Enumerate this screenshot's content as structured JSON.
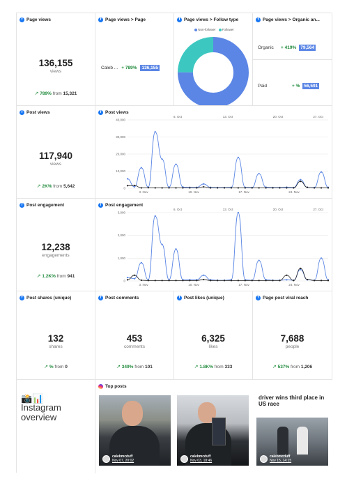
{
  "page_views": {
    "title": "Page views",
    "value": "136,155",
    "unit": "views",
    "change_pct": "789%",
    "change_from_label": "from",
    "change_from": "15,321"
  },
  "page_views_page": {
    "title": "Page views > Page",
    "label": "Caleb ...",
    "pct": "+ 789%",
    "value": "136,155"
  },
  "page_views_follow": {
    "title": "Page views > Follow type",
    "legend": [
      "Non-follower",
      "Follower"
    ],
    "chart_data": {
      "type": "pie",
      "labels": [
        "Non-follower",
        "Follower"
      ],
      "values": [
        75,
        25
      ],
      "colors": [
        "#5b86e5",
        "#3cc8c0"
      ]
    }
  },
  "page_views_organic": {
    "title": "Page views > Organic an...",
    "rows": [
      {
        "label": "Organic",
        "pct": "+ 419%",
        "value": "79,564"
      },
      {
        "label": "Paid",
        "pct": "+ %",
        "value": "56,591"
      }
    ]
  },
  "post_views": {
    "title": "Post views",
    "value": "117,940",
    "unit": "views",
    "change_pct": "2K%",
    "change_from_label": "from",
    "change_from": "5,642"
  },
  "post_views_chart": {
    "title": "Post views",
    "chart_data": {
      "type": "line",
      "top_ticks": [
        "6. Oct",
        "13. Oct",
        "20. Oct",
        "27. Oct"
      ],
      "bottom_ticks": [
        "3. Nov",
        "10. Nov",
        "17. Nov",
        "24. Nov"
      ],
      "y_ticks": [
        "40,000",
        "30,000",
        "20,000",
        "10,000",
        "0"
      ],
      "ylim": [
        0,
        40000
      ],
      "series": [
        {
          "values": [
            5500,
            800,
            12000,
            600,
            33000,
            17000,
            600,
            14000,
            700,
            500,
            500,
            2500,
            500,
            400,
            400,
            500,
            18000,
            500,
            400,
            8500,
            600,
            400,
            400,
            600,
            400,
            5000,
            500,
            400,
            9500,
            500
          ],
          "color": "#5b86e5"
        },
        {
          "values": [
            1500,
            1600,
            200,
            300,
            200,
            200,
            200,
            200,
            200,
            200,
            200,
            800,
            200,
            200,
            200,
            200,
            200,
            200,
            200,
            200,
            200,
            200,
            200,
            200,
            200,
            4000,
            500,
            200,
            200,
            200
          ],
          "color": "#222222"
        }
      ]
    }
  },
  "post_engagement": {
    "title": "Post engagement",
    "value": "12,238",
    "unit": "engagements",
    "change_pct": "1.2K%",
    "change_from_label": "from",
    "change_from": "941"
  },
  "post_engagement_chart": {
    "title": "Post engagement",
    "chart_data": {
      "type": "line",
      "top_ticks": [
        "6. Oct",
        "13. Oct",
        "20. Oct",
        "27. Oct"
      ],
      "bottom_ticks": [
        "3. Nov",
        "10. Nov",
        "17. Nov",
        "24. Nov"
      ],
      "y_ticks": [
        "3,000",
        "2,000",
        "1,000",
        "0"
      ],
      "ylim": [
        0,
        3000
      ],
      "series": [
        {
          "values": [
            150,
            100,
            800,
            50,
            2850,
            1600,
            50,
            1400,
            50,
            50,
            50,
            250,
            50,
            30,
            30,
            50,
            3000,
            50,
            30,
            900,
            60,
            30,
            30,
            50,
            30,
            500,
            50,
            30,
            1000,
            50
          ],
          "color": "#5b86e5"
        },
        {
          "values": [
            50,
            250,
            30,
            20,
            20,
            20,
            20,
            20,
            20,
            20,
            20,
            60,
            20,
            20,
            20,
            20,
            20,
            20,
            20,
            20,
            20,
            20,
            20,
            250,
            20,
            550,
            60,
            20,
            20,
            20
          ],
          "color": "#222222"
        }
      ]
    }
  },
  "post_shares": {
    "title": "Post shares (unique)",
    "value": "132",
    "unit": "shares",
    "change_pct": "%",
    "change_from_label": "from",
    "change_from": "0"
  },
  "post_comments": {
    "title": "Post comments",
    "value": "453",
    "unit": "comments",
    "change_pct": "349%",
    "change_from_label": "from",
    "change_from": "101"
  },
  "post_likes": {
    "title": "Post likes (unique)",
    "value": "6,325",
    "unit": "likes",
    "change_pct": "1.8K%",
    "change_from_label": "from",
    "change_from": "333"
  },
  "page_viral": {
    "title": "Page post viral reach",
    "value": "7,688",
    "unit": "people",
    "change_pct": "537%",
    "change_from_label": "from",
    "change_from": "1,206"
  },
  "instagram": {
    "emoji": "📸📊",
    "label_line1": "Instagram",
    "label_line2": "overview"
  },
  "top_posts": {
    "title": "Top posts",
    "posts": [
      {
        "user": "calebmcduff",
        "date": "Nov 07, 20:02"
      },
      {
        "user": "calebmcduff",
        "date": "Nov 03, 18:46"
      },
      {
        "user": "calebmcduff",
        "date": "Nov 15, 14:15",
        "headline": "driver wins third place in US race"
      }
    ]
  }
}
